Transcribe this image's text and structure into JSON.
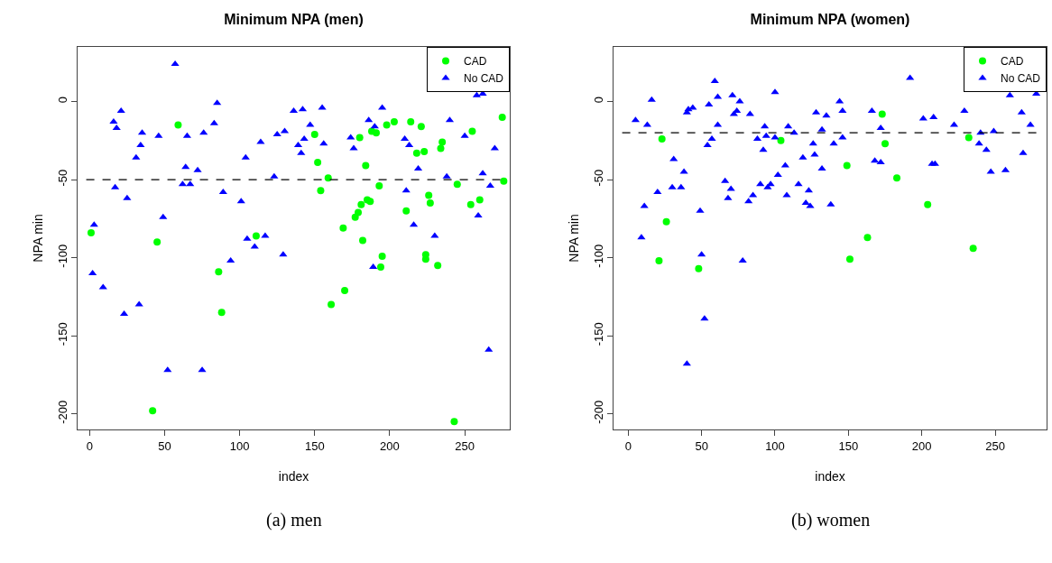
{
  "chart_data": [
    {
      "type": "scatter",
      "title": "Minimum NPA (men)",
      "xlabel": "index",
      "ylabel": "NPA min",
      "xlim": [
        -8,
        280
      ],
      "ylim": [
        -210,
        35
      ],
      "xticks": [
        0,
        50,
        100,
        150,
        200,
        250
      ],
      "yticks": [
        0,
        -50,
        -100,
        -150,
        -200
      ],
      "grid": false,
      "legend": "top right",
      "annotations": [
        "(a) men"
      ],
      "ref_lines": [
        {
          "axis": "y",
          "value": -50,
          "color": "#000000",
          "line_style": "dashed"
        }
      ],
      "series": [
        {
          "name": "CAD",
          "color": "#00ff00",
          "marker": "circle",
          "x": [
            59,
            1,
            45,
            86,
            88,
            42,
            111,
            275,
            255,
            203,
            198,
            214,
            221,
            150,
            180,
            188,
            191,
            235,
            234,
            218,
            223,
            152,
            184,
            159,
            276,
            154,
            193,
            245,
            226,
            227,
            260,
            254,
            185,
            187,
            181,
            179,
            177,
            211,
            169,
            182,
            224,
            224,
            195,
            194,
            232,
            170,
            161,
            243
          ],
          "values": [
            -15,
            -84,
            -90,
            -109,
            -135,
            -198,
            -86,
            -10,
            -19,
            -13,
            -15,
            -13,
            -16,
            -21,
            -23,
            -19,
            -20,
            -26,
            -30,
            -33,
            -32,
            -39,
            -41,
            -49,
            -51,
            -57,
            -54,
            -53,
            -60,
            -65,
            -63,
            -66,
            -63,
            -64,
            -66,
            -71,
            -74,
            -70,
            -81,
            -89,
            -98,
            -101,
            -99,
            -106,
            -105,
            -121,
            -130,
            -205
          ]
        },
        {
          "name": "No CAD",
          "color": "#0000ff",
          "marker": "triangle",
          "x": [
            57,
            85,
            21,
            16,
            18,
            35,
            46,
            65,
            76,
            83,
            34,
            31,
            104,
            64,
            72,
            17,
            25,
            62,
            67,
            89,
            101,
            49,
            3,
            105,
            110,
            94,
            2,
            9,
            33,
            23,
            52,
            75,
            258,
            262,
            136,
            142,
            155,
            195,
            186,
            190,
            240,
            147,
            125,
            130,
            114,
            139,
            143,
            141,
            156,
            174,
            176,
            210,
            213,
            250,
            270,
            219,
            123,
            238,
            262,
            267,
            211,
            259,
            216,
            117,
            129,
            230,
            189,
            266
          ],
          "values": [
            24,
            -1,
            -6,
            -13,
            -17,
            -20,
            -22,
            -22,
            -20,
            -14,
            -28,
            -36,
            -36,
            -42,
            -44,
            -55,
            -62,
            -53,
            -53,
            -58,
            -64,
            -74,
            -79,
            -88,
            -93,
            -102,
            -110,
            -119,
            -130,
            -136,
            -172,
            -172,
            4,
            5,
            -6,
            -5,
            -4,
            -4,
            -12,
            -16,
            -12,
            -15,
            -21,
            -19,
            -26,
            -28,
            -24,
            -33,
            -27,
            -23,
            -30,
            -24,
            -28,
            -22,
            -30,
            -43,
            -48,
            -48,
            -46,
            -54,
            -57,
            -73,
            -79,
            -86,
            -98,
            -86,
            -106,
            -159
          ]
        }
      ]
    },
    {
      "type": "scatter",
      "title": "Minimum NPA (women)",
      "xlabel": "index",
      "ylabel": "NPA min",
      "xlim": [
        -10,
        285
      ],
      "ylim": [
        -210,
        35
      ],
      "xticks": [
        0,
        50,
        100,
        150,
        200,
        250
      ],
      "yticks": [
        0,
        -50,
        -100,
        -150,
        -200
      ],
      "grid": false,
      "legend": "top right",
      "annotations": [
        "(b) women"
      ],
      "ref_lines": [
        {
          "axis": "y",
          "value": -20,
          "color": "#000000",
          "line_style": "dashed"
        }
      ],
      "series": [
        {
          "name": "CAD",
          "color": "#00ff00",
          "marker": "circle",
          "x": [
            23,
            104,
            26,
            21,
            48,
            173,
            175,
            232,
            149,
            183,
            204,
            163,
            235,
            151
          ],
          "values": [
            -24,
            -25,
            -77,
            -102,
            -107,
            -8,
            -27,
            -23,
            -41,
            -49,
            -66,
            -87,
            -94,
            -101
          ]
        },
        {
          "name": "No CAD",
          "color": "#0000ff",
          "marker": "triangle",
          "x": [
            59,
            100,
            16,
            71,
            61,
            76,
            55,
            41,
            44,
            40,
            74,
            72,
            83,
            5,
            13,
            61,
            93,
            109,
            94,
            88,
            100,
            57,
            54,
            92,
            31,
            38,
            107,
            102,
            66,
            70,
            68,
            30,
            36,
            20,
            90,
            97,
            95,
            108,
            85,
            82,
            11,
            49,
            9,
            50,
            78,
            52,
            40,
            113,
            192,
            260,
            278,
            144,
            146,
            128,
            135,
            166,
            229,
            201,
            208,
            268,
            274,
            222,
            172,
            132,
            240,
            249,
            146,
            126,
            140,
            239,
            244,
            269,
            127,
            119,
            132,
            168,
            172,
            207,
            209,
            247,
            257,
            116,
            123,
            121,
            124,
            138
          ],
          "values": [
            13,
            6,
            1,
            4,
            3,
            0,
            -2,
            -5,
            -4,
            -7,
            -6,
            -8,
            -8,
            -12,
            -15,
            -15,
            -16,
            -16,
            -22,
            -24,
            -23,
            -24,
            -28,
            -31,
            -37,
            -45,
            -41,
            -47,
            -51,
            -56,
            -62,
            -55,
            -55,
            -58,
            -53,
            -53,
            -55,
            -60,
            -60,
            -64,
            -67,
            -70,
            -87,
            -98,
            -102,
            -139,
            -168,
            -20,
            15,
            4,
            5,
            0,
            -6,
            -7,
            -9,
            -6,
            -6,
            -11,
            -10,
            -7,
            -15,
            -15,
            -17,
            -18,
            -20,
            -19,
            -23,
            -27,
            -27,
            -27,
            -31,
            -33,
            -34,
            -36,
            -43,
            -38,
            -39,
            -40,
            -40,
            -45,
            -44,
            -53,
            -57,
            -65,
            -67,
            -66
          ]
        }
      ]
    }
  ]
}
